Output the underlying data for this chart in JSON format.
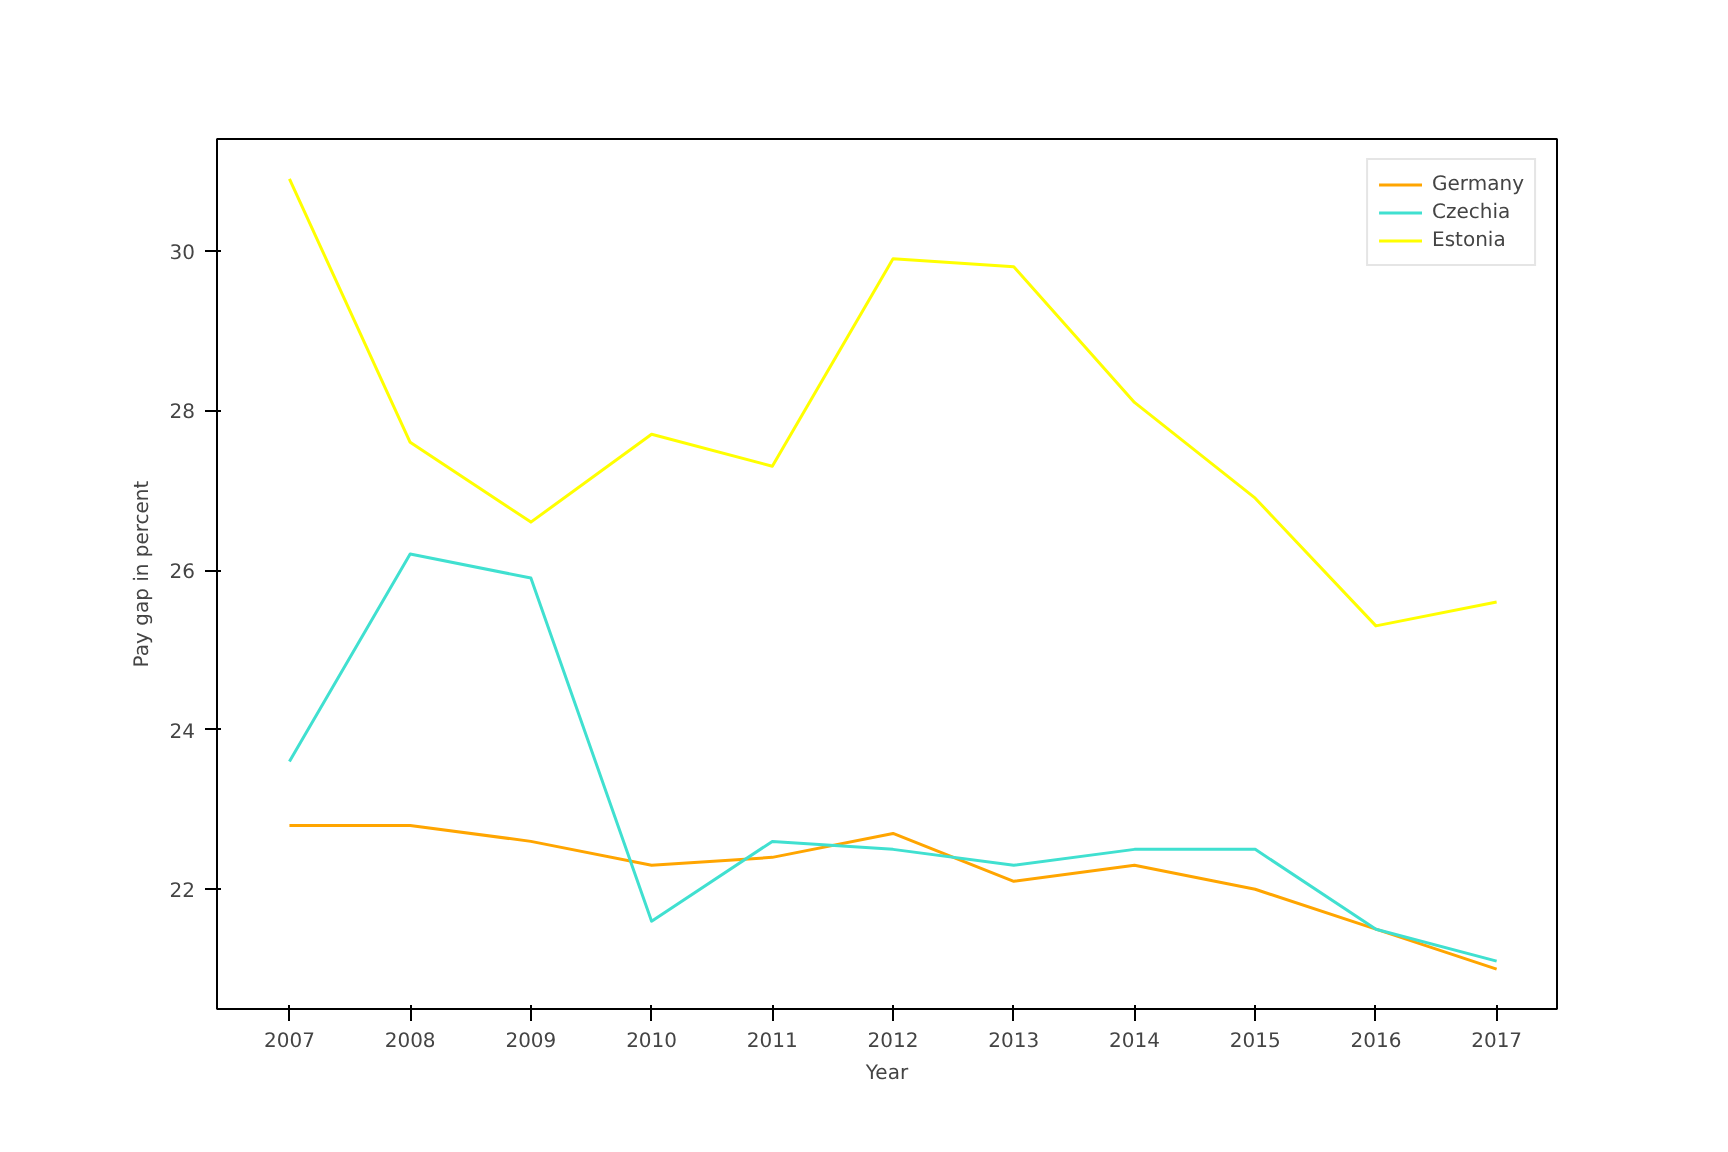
{
  "chart_data": {
    "type": "line",
    "xlabel": "Year",
    "ylabel": "Pay gap in percent",
    "x": [
      2007,
      2008,
      2009,
      2010,
      2011,
      2012,
      2013,
      2014,
      2015,
      2016,
      2017
    ],
    "series": [
      {
        "name": "Germany",
        "color": "#ffa500",
        "values": [
          22.8,
          22.8,
          22.6,
          22.3,
          22.4,
          22.7,
          22.1,
          22.3,
          22.0,
          21.5,
          21.0
        ]
      },
      {
        "name": "Czechia",
        "color": "#40e0d0",
        "values": [
          23.6,
          26.2,
          25.9,
          21.6,
          22.6,
          22.5,
          22.3,
          22.5,
          22.5,
          21.5,
          21.1
        ]
      },
      {
        "name": "Estonia",
        "color": "#ffff00",
        "values": [
          30.9,
          27.6,
          26.6,
          27.7,
          27.3,
          29.9,
          29.8,
          28.1,
          26.9,
          25.3,
          25.6
        ]
      }
    ],
    "xlim": [
      2006.4,
      2017.5
    ],
    "ylim": [
      20.5,
      31.4
    ],
    "xticks": [
      2007,
      2008,
      2009,
      2010,
      2011,
      2012,
      2013,
      2014,
      2015,
      2016,
      2017
    ],
    "yticks": [
      22,
      24,
      26,
      28,
      30
    ],
    "grid": false,
    "legend": "top right",
    "marker": "none",
    "line_style": "solid"
  }
}
